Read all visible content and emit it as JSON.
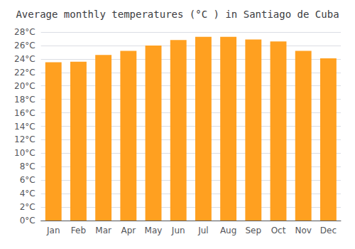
{
  "chart_data": {
    "type": "bar",
    "title": "Average monthly temperatures (°C ) in Santiago de Cuba",
    "categories": [
      "Jan",
      "Feb",
      "Mar",
      "Apr",
      "May",
      "Jun",
      "Jul",
      "Aug",
      "Sep",
      "Oct",
      "Nov",
      "Dec"
    ],
    "values": [
      23.5,
      23.6,
      24.6,
      25.2,
      26.0,
      26.8,
      27.3,
      27.3,
      26.9,
      26.6,
      25.2,
      24.1
    ],
    "color": "#FFA020",
    "ylim": [
      0,
      28
    ],
    "yticks": [
      {
        "value": 0,
        "label": "0°C"
      },
      {
        "value": 2,
        "label": "2°C"
      },
      {
        "value": 4,
        "label": "4°C"
      },
      {
        "value": 6,
        "label": "6°C"
      },
      {
        "value": 8,
        "label": "8°C"
      },
      {
        "value": 10,
        "label": "10°C"
      },
      {
        "value": 12,
        "label": "12°C"
      },
      {
        "value": 14,
        "label": "14°C"
      },
      {
        "value": 16,
        "label": "16°C"
      },
      {
        "value": 18,
        "label": "18°C"
      },
      {
        "value": 20,
        "label": "20°C"
      },
      {
        "value": 22,
        "label": "22°C"
      },
      {
        "value": 24,
        "label": "24°C"
      },
      {
        "value": 26,
        "label": "26°C"
      },
      {
        "value": 28,
        "label": "28°C"
      }
    ],
    "grid": true
  }
}
